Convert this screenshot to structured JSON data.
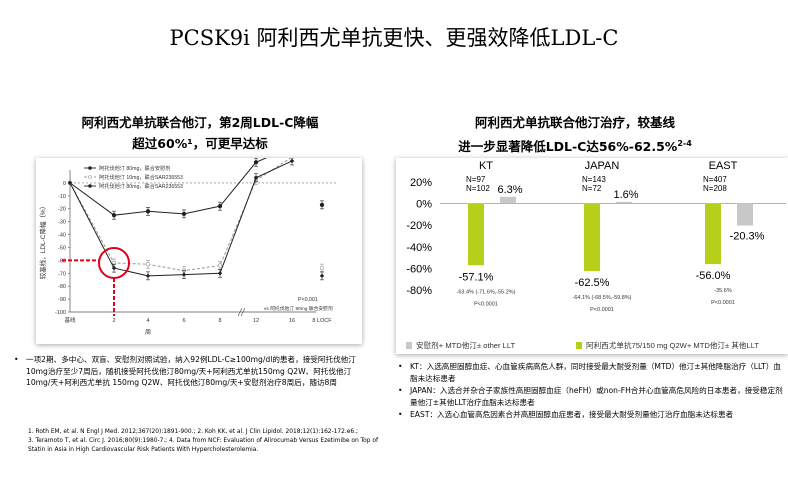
{
  "slide": {
    "title": "PCSK9i 阿利西尤单抗更快、更强效降低LDL-C"
  },
  "left_panel": {
    "heading_line1": "阿利西尤单抗联合他汀，第2周LDL-C降幅",
    "heading_line2": "超过60%¹，可更早达标",
    "bullet_text": "一项2期、多中心、双盲、安慰剂对照试验，纳入92例LDL-C≥100mg/dl的患者，接受阿托伐他汀10mg治疗至少7周后，随机接受阿托伐他汀80mg/天+阿利西尤单抗150mg Q2W、阿托伐他汀10mg/天+阿利西尤单抗 150mg Q2W、阿托伐他汀80mg/天+安慰剂治疗8周后，随访8周"
  },
  "right_panel": {
    "heading_line1": "阿利西尤单抗联合他汀治疗，较基线",
    "heading_line2": "进一步显著降低LDL-C达56%-62.5%",
    "heading_sup": "2-4",
    "bullets": [
      "KT：入选高胆固醇血症、心血管疾病高危人群，同时接受最大耐受剂量（MTD）他汀±其他降脂治疗（LLT）血脂未达标患者",
      "JAPAN：入选合并杂合子家族性高胆固醇血症（heFH）或non-FH合并心血管高危风险的日本患者，接受稳定剂量他汀±其他LLT治疗血脂未达标患者",
      "EAST：入选心血管高危因素合并高胆固醇血症患者，接受最大耐受剂量他汀治疗血脂未达标患者"
    ]
  },
  "references": [
    "1. Roth EM, et al. N Engl J Med. 2012;367(20):1891-900.; 2. Koh KK, et al. J Clin Lipidol. 2018;12(1):162-172.e6.;",
    "3. Teramoto T, et al. Circ J. 2016;80(9):1980-7.; 4. Data from NCF: Evaluation of Alirocumab Versus Ezetimibe on Top of",
    "Statin in Asia in High Cardiovascular Risk Patients With Hypercholesterolemia."
  ],
  "chart_data": [
    {
      "type": "line",
      "ylabel": "较基线，LDL-C降幅（%）",
      "xlabel": "周",
      "ylim": [
        -100,
        10
      ],
      "yticks": [
        0,
        -10,
        -20,
        -30,
        -40,
        -50,
        -60,
        -70,
        -80,
        -90,
        -100
      ],
      "x_categories": [
        "基线",
        "2",
        "4",
        "6",
        "8",
        "12",
        "16",
        "8 LOCF"
      ],
      "legend": [
        "阿托伐他汀 80mg，联合安慰剂",
        "阿托伐他汀 10mg，联合SAR236553",
        "阿托伐他汀 80mg，联合SAR236553"
      ],
      "series": [
        {
          "name": "阿托伐他汀 80mg，联合安慰剂",
          "values": [
            0,
            -25,
            -22,
            -24,
            -18,
            16,
            28,
            -17
          ]
        },
        {
          "name": "阿托伐他汀 10mg，联合SAR236553",
          "values": [
            0,
            -62,
            -63,
            -68,
            -64,
            2,
            20,
            -66
          ]
        },
        {
          "name": "阿托伐他汀 80mg，联合SAR236553",
          "values": [
            0,
            -66,
            -72,
            -71,
            -70,
            4,
            17,
            -72
          ]
        }
      ],
      "annotation_p": "P<0.001",
      "annotation_vs": "vs 阿托伐他汀 80mg 联合安慰剂",
      "highlight": "第2周 约-60%"
    },
    {
      "type": "bar",
      "ylim": [
        -80,
        20
      ],
      "yticks": [
        "20%",
        "0%",
        "-20%",
        "-40%",
        "-60%",
        "-80%"
      ],
      "groups": [
        {
          "label": "KT",
          "n_alirocumab": "N=97",
          "n_placebo": "N=102",
          "alirocumab": -57.1,
          "placebo": 6.3,
          "alirocumab_label": "-57.1%",
          "placebo_label": "6.3%",
          "diff": "-63.4% (-71.6%,-55.2%)",
          "p": "P<0.0001"
        },
        {
          "label": "JAPAN",
          "n_alirocumab": "N=143",
          "n_placebo": "N=72",
          "alirocumab": -62.5,
          "placebo": 1.6,
          "alirocumab_label": "-62.5%",
          "placebo_label": "1.6%",
          "diff": "-64.1% (-68.5%,-59.8%)",
          "p": "P<0.0001"
        },
        {
          "label": "EAST",
          "n_alirocumab": "N=407",
          "n_placebo": "N=208",
          "alirocumab": -56.0,
          "placebo": -20.3,
          "alirocumab_label": "-56.0%",
          "placebo_label": "-20.3%",
          "diff": "-35.6%",
          "p": "P<0.0001"
        }
      ],
      "legend": {
        "placebo": "安慰剂+ MTD他汀± other LLT",
        "alirocumab": "阿利西尤单抗75/150 mg Q2W+ MTD他汀± 其他LLT"
      },
      "colors": {
        "alirocumab": "#b5cf1b",
        "placebo": "#c8c8c8"
      }
    }
  ]
}
